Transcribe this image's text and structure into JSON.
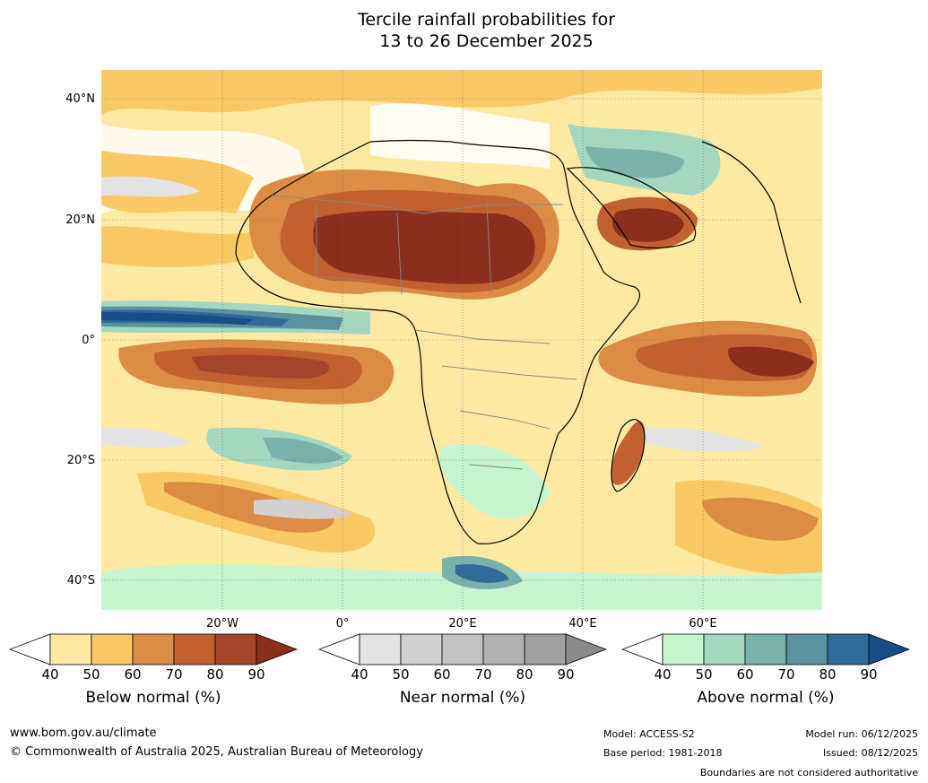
{
  "title_line1": "Tercile rainfall probabilities for",
  "title_line2": "13 to 26 December 2025",
  "lat_labels": [
    "40°N",
    "20°N",
    "0°",
    "20°S",
    "40°S"
  ],
  "lon_labels": [
    "20°W",
    "0°",
    "20°E",
    "40°E",
    "60°E"
  ],
  "colorbars": [
    {
      "label": "Below normal (%)",
      "ticks": [
        "40",
        "50",
        "60",
        "70",
        "80",
        "90"
      ],
      "colors": [
        "#ffffff",
        "#fde9a2",
        "#fbc866",
        "#dc8c45",
        "#c3602f",
        "#a4452a",
        "#8c2e1c"
      ]
    },
    {
      "label": "Near normal (%)",
      "ticks": [
        "40",
        "50",
        "60",
        "70",
        "80",
        "90"
      ],
      "colors": [
        "#ffffff",
        "#e3e3e3",
        "#d1d1d1",
        "#c2c2c2",
        "#b1b1b1",
        "#a0a0a0",
        "#8a8a8a"
      ]
    },
    {
      "label": "Above normal (%)",
      "ticks": [
        "40",
        "50",
        "60",
        "70",
        "80",
        "90"
      ],
      "colors": [
        "#ffffff",
        "#c6f5cf",
        "#a3d7bf",
        "#79b2ab",
        "#5b92a0",
        "#2f6a99",
        "#174e86"
      ]
    }
  ],
  "footer": {
    "website": "www.bom.gov.au/climate",
    "copyright": "© Commonwealth of Australia 2025, Australian Bureau of Meteorology",
    "model": "Model: ACCESS-S2",
    "base_period": "Base period: 1981-2018",
    "model_run": "Model run: 06/12/2025",
    "issued": "Issued: 08/12/2025",
    "disclaimer": "Boundaries are not considered authoritative"
  }
}
